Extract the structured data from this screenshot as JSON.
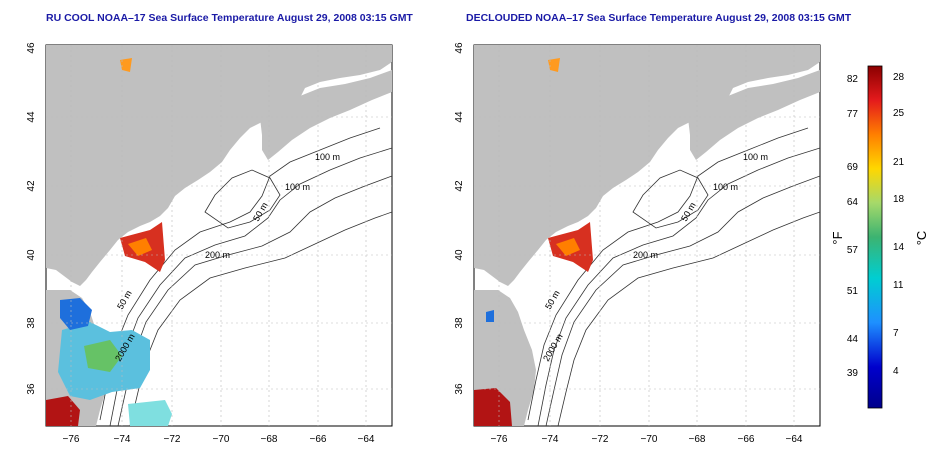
{
  "panels": [
    {
      "title": "RU COOL NOAA–17 Sea Surface Temperature August 29, 2008 03:15 GMT",
      "x_ticks": [
        "−76",
        "−74",
        "−72",
        "−70",
        "−68",
        "−66",
        "−64"
      ],
      "y_ticks": [
        "36",
        "38",
        "40",
        "42",
        "44",
        "46"
      ],
      "contour_labels": [
        "100 m",
        "100 m",
        "50 m",
        "200 m",
        "50 m",
        "2000 m"
      ]
    },
    {
      "title": "DECLOUDED NOAA–17 Sea Surface Temperature August 29, 2008 03:15 GMT",
      "x_ticks": [
        "−76",
        "−74",
        "−72",
        "−70",
        "−68",
        "−66",
        "−64"
      ],
      "y_ticks": [
        "36",
        "38",
        "40",
        "42",
        "44",
        "46"
      ],
      "contour_labels": [
        "100 m",
        "100 m",
        "50 m",
        "200 m",
        "50 m",
        "2000 m"
      ]
    }
  ],
  "colorbar": {
    "f_label": "°F",
    "c_label": "°C",
    "f_ticks": [
      "82",
      "77",
      "69",
      "64",
      "57",
      "51",
      "44",
      "39"
    ],
    "c_ticks": [
      "28",
      "25",
      "21",
      "18",
      "14",
      "11",
      "7",
      "4"
    ],
    "colors": [
      "#8b0000",
      "#e41a1c",
      "#ff7f00",
      "#ffd700",
      "#a6d96a",
      "#3cb371",
      "#00ced1",
      "#1e90ff",
      "#0000cd",
      "#00008b"
    ]
  },
  "colors": {
    "land": "#c0c0c0",
    "title": "#1a1aa6",
    "contour": "#333333"
  }
}
